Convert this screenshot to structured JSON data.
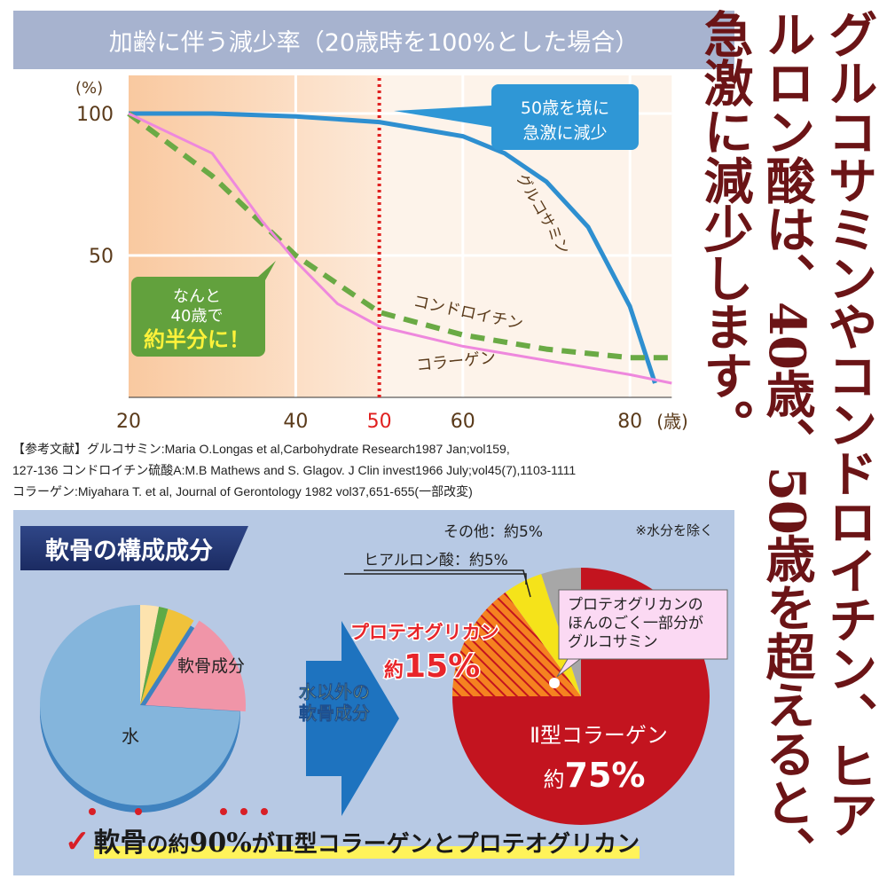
{
  "header": {
    "title": "加齢に伴う減少率（20歳時を100%とした場合）"
  },
  "chart_data": [
    {
      "type": "line",
      "title": "加齢に伴う減少率（20歳時を100%とした場合）",
      "ylabel": "(%)",
      "xlabel": "(歳)",
      "xlim": [
        20,
        85
      ],
      "ylim": [
        0,
        100
      ],
      "xticks": [
        20,
        40,
        50,
        60,
        80
      ],
      "yticks": [
        50,
        100
      ],
      "grid": true,
      "highlight_x": 50,
      "highlight_color": "#e0201f",
      "series": [
        {
          "name": "グルコサミン",
          "color": "#2e8fd0",
          "style": "solid",
          "x": [
            20,
            30,
            40,
            50,
            60,
            65,
            70,
            75,
            80,
            83
          ],
          "y": [
            100,
            100,
            99,
            97,
            92,
            86,
            76,
            60,
            32,
            5
          ]
        },
        {
          "name": "コンドロイチン",
          "color": "#6aaa45",
          "style": "dashed",
          "x": [
            20,
            30,
            40,
            50,
            60,
            70,
            80,
            85
          ],
          "y": [
            100,
            78,
            50,
            30,
            22,
            17,
            14,
            14
          ]
        },
        {
          "name": "コラーゲン",
          "color": "#ee88dd",
          "style": "solid",
          "x": [
            20,
            30,
            32,
            36,
            40,
            45,
            50,
            60,
            70,
            80,
            85
          ],
          "y": [
            100,
            86,
            78,
            62,
            48,
            33,
            25,
            18,
            13,
            8,
            5
          ]
        }
      ],
      "annotations": [
        "50歳を境に",
        "急激に減少",
        "なんと",
        "40歳で",
        "約半分に！"
      ]
    },
    {
      "type": "pie",
      "title": "軟骨の構成成分",
      "slices": [
        {
          "name": "",
          "value": 3,
          "color": "#fde3ae"
        },
        {
          "name": "",
          "value": 1.5,
          "color": "#5faa46"
        },
        {
          "name": "",
          "value": 4.5,
          "color": "#f0c23a"
        },
        {
          "name": "軟骨成分",
          "value": 17,
          "color": "#f095a8"
        },
        {
          "name": "水",
          "value": 74,
          "color": "#84b5dc"
        }
      ]
    },
    {
      "type": "pie",
      "note": "※水分を除く",
      "slices": [
        {
          "name": "Ⅱ型コラーゲン",
          "label": "約75%",
          "value": 75,
          "color": "#c3141f"
        },
        {
          "name": "プロテオグリカン",
          "label": "約15%",
          "value": 15,
          "color": "#f58220"
        },
        {
          "name": "ヒアルロン酸",
          "label": "約5%",
          "value": 5,
          "color": "#f5e31a"
        },
        {
          "name": "その他",
          "label": "約5%",
          "value": 5,
          "color": "#a7a7a7"
        }
      ]
    }
  ],
  "references": [
    "【参考文献】グルコサミン:Maria O.Longas et al,Carbohydrate Research1987 Jan;vol159,",
    "127-136 コンドロイチン硫酸A:M.B Mathews and S. Glagov. J Clin invest1966 July;vol45(7),1103-1111",
    "コラーゲン:Miyahara T. et al, Journal of Gerontology 1982 vol37,651-655(一部改変)"
  ],
  "headline": "グルコサミンやコンドロイチン、ヒアルロン酸は、40歳、50歳を超えると、急激に減少します。",
  "bottom": {
    "tab": "軟骨の構成成分",
    "arrow_label_1": "水以外の",
    "arrow_label_2": "軟骨成分",
    "callout_1": "プロテオグリカンの",
    "callout_2": "ほんのごく一部分が",
    "callout_3": "グルコサミン",
    "pg_name": "プロテオグリカン",
    "pg_prefix": "約",
    "pg_value": "15%",
    "col_name": "Ⅱ型コラーゲン",
    "col_prefix": "約",
    "col_value": "75%",
    "ha_label": "ヒアルロン酸：約5%",
    "other_label": "その他：約5%",
    "summary": {
      "check": "✓",
      "a": "軟骨",
      "b": "の約",
      "c": "90%",
      "d": "がⅡ型コラーゲンとプロテオグリカン"
    }
  }
}
